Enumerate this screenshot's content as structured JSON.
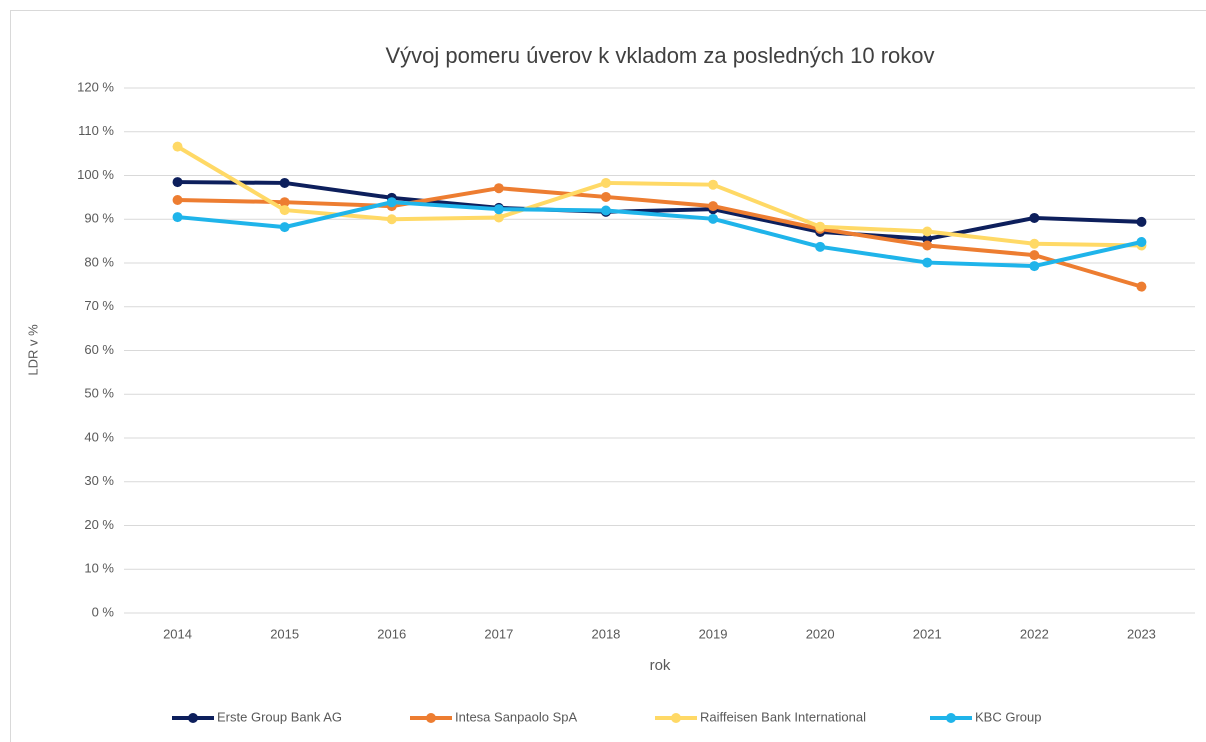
{
  "chart_data": {
    "type": "line",
    "title": "Vývoj pomeru úverov k vkladom za posledných 10 rokov",
    "x_label": "rok",
    "y_label": "LDR v %",
    "categories": [
      "2014",
      "2015",
      "2016",
      "2017",
      "2018",
      "2019",
      "2020",
      "2021",
      "2022",
      "2023"
    ],
    "series": [
      {
        "name": "Erste Group Bank AG",
        "color": "#0d1f5c",
        "values": [
          98.5,
          98.3,
          94.9,
          92.6,
          91.7,
          92.3,
          87.1,
          85.5,
          90.3,
          89.4
        ]
      },
      {
        "name": "Intesa Sanpaolo SpA",
        "color": "#ed7d31",
        "values": [
          94.4,
          93.9,
          93.0,
          97.1,
          95.1,
          93.0,
          87.8,
          84.0,
          81.8,
          74.6
        ]
      },
      {
        "name": "Raiffeisen Bank International",
        "color": "#ffd966",
        "values": [
          106.6,
          92.1,
          90.0,
          90.4,
          98.3,
          97.9,
          88.3,
          87.2,
          84.4,
          84.0
        ]
      },
      {
        "name": "KBC Group",
        "color": "#1fb4ea",
        "values": [
          90.5,
          88.2,
          93.9,
          92.3,
          92.0,
          90.1,
          83.7,
          80.1,
          79.3,
          84.8
        ]
      }
    ],
    "ylim": [
      0,
      120
    ],
    "yticks": [
      {
        "value": 0,
        "label": "0 %"
      },
      {
        "value": 10,
        "label": "10 %"
      },
      {
        "value": 20,
        "label": "20 %"
      },
      {
        "value": 30,
        "label": "30 %"
      },
      {
        "value": 40,
        "label": "40 %"
      },
      {
        "value": 50,
        "label": "50 %"
      },
      {
        "value": 60,
        "label": "60 %"
      },
      {
        "value": 70,
        "label": "70 %"
      },
      {
        "value": 80,
        "label": "80 %"
      },
      {
        "value": 90,
        "label": "90 %"
      },
      {
        "value": 100,
        "label": "100 %"
      },
      {
        "value": 110,
        "label": "110 %"
      },
      {
        "value": 120,
        "label": "120 %"
      }
    ],
    "grid": true,
    "legend": "bottom"
  }
}
